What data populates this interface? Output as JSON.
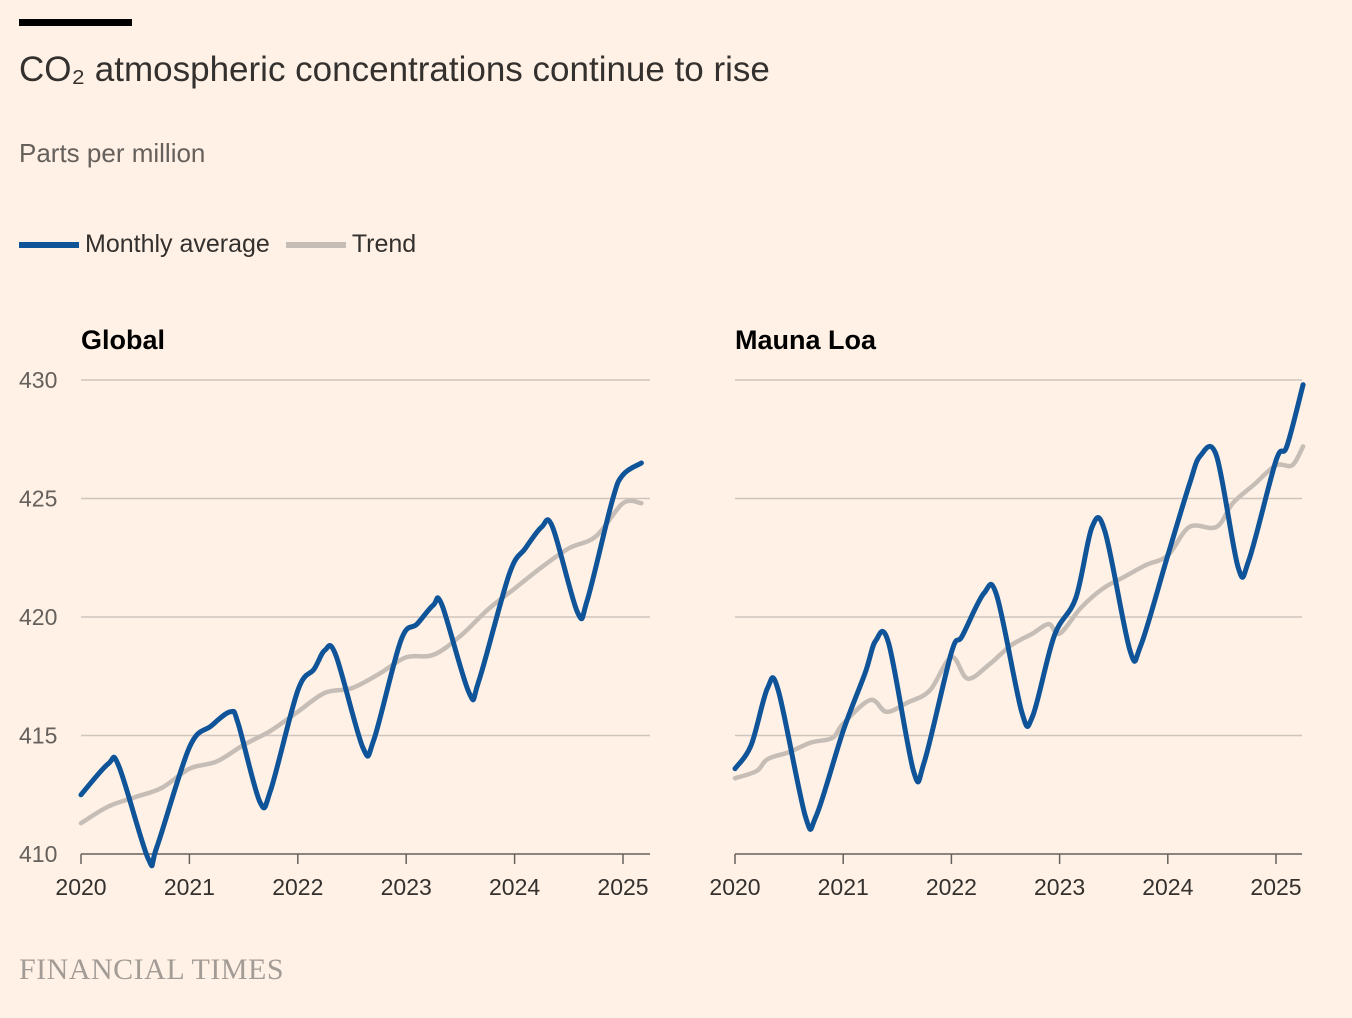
{
  "header": {
    "title": "CO₂ atmospheric concentrations continue to rise",
    "subtitle": "Parts per million"
  },
  "legend": [
    {
      "label": "Monthly average",
      "color": "#0F5499"
    },
    {
      "label": "Trend",
      "color": "#C6BEB6"
    }
  ],
  "footer": {
    "source": "FINANCIAL TIMES"
  },
  "chart_data": [
    {
      "type": "line",
      "title": "Global",
      "ylabel": "Parts per million",
      "ylim": [
        410,
        430
      ],
      "xlim": [
        2020,
        2025.2
      ],
      "yticks": [
        410,
        415,
        420,
        425,
        430
      ],
      "xticks": [
        2020,
        2021,
        2022,
        2023,
        2024,
        2025
      ],
      "grid": true,
      "series": [
        {
          "name": "Monthly average",
          "points": [
            [
              2020.0,
              412.5
            ],
            [
              2020.25,
              413.8
            ],
            [
              2020.35,
              413.7
            ],
            [
              2020.62,
              409.8
            ],
            [
              2020.7,
              410.3
            ],
            [
              2021.0,
              414.5
            ],
            [
              2021.2,
              415.4
            ],
            [
              2021.38,
              416.0
            ],
            [
              2021.45,
              415.5
            ],
            [
              2021.65,
              412.2
            ],
            [
              2021.75,
              412.7
            ],
            [
              2022.0,
              416.9
            ],
            [
              2022.15,
              417.8
            ],
            [
              2022.25,
              418.6
            ],
            [
              2022.35,
              418.4
            ],
            [
              2022.6,
              414.5
            ],
            [
              2022.7,
              414.8
            ],
            [
              2022.95,
              419.0
            ],
            [
              2023.1,
              419.7
            ],
            [
              2023.25,
              420.5
            ],
            [
              2023.33,
              420.5
            ],
            [
              2023.58,
              416.8
            ],
            [
              2023.67,
              417.3
            ],
            [
              2023.95,
              421.8
            ],
            [
              2024.1,
              422.9
            ],
            [
              2024.25,
              423.8
            ],
            [
              2024.35,
              423.8
            ],
            [
              2024.58,
              420.2
            ],
            [
              2024.67,
              420.7
            ],
            [
              2024.9,
              424.9
            ],
            [
              2025.0,
              426.0
            ],
            [
              2025.17,
              426.5
            ]
          ]
        },
        {
          "name": "Trend",
          "points": [
            [
              2020.0,
              411.3
            ],
            [
              2020.25,
              412.0
            ],
            [
              2020.5,
              412.4
            ],
            [
              2020.75,
              412.8
            ],
            [
              2021.0,
              413.6
            ],
            [
              2021.25,
              413.9
            ],
            [
              2021.5,
              414.6
            ],
            [
              2021.75,
              415.2
            ],
            [
              2022.0,
              416.0
            ],
            [
              2022.25,
              416.8
            ],
            [
              2022.5,
              417.0
            ],
            [
              2022.75,
              417.6
            ],
            [
              2023.0,
              418.3
            ],
            [
              2023.25,
              418.4
            ],
            [
              2023.5,
              419.2
            ],
            [
              2023.75,
              420.3
            ],
            [
              2024.0,
              421.2
            ],
            [
              2024.25,
              422.1
            ],
            [
              2024.5,
              422.9
            ],
            [
              2024.75,
              423.4
            ],
            [
              2025.0,
              424.8
            ],
            [
              2025.17,
              424.8
            ]
          ]
        }
      ]
    },
    {
      "type": "line",
      "title": "Mauna Loa",
      "ylabel": "Parts per million",
      "ylim": [
        410,
        430
      ],
      "xlim": [
        2020,
        2025.25
      ],
      "yticks": [
        410,
        415,
        420,
        425,
        430
      ],
      "xticks": [
        2020,
        2021,
        2022,
        2023,
        2024,
        2025
      ],
      "grid": true,
      "series": [
        {
          "name": "Monthly average",
          "points": [
            [
              2020.0,
              413.6
            ],
            [
              2020.15,
              414.6
            ],
            [
              2020.3,
              417.0
            ],
            [
              2020.4,
              416.9
            ],
            [
              2020.65,
              411.6
            ],
            [
              2020.75,
              411.6
            ],
            [
              2021.0,
              415.2
            ],
            [
              2021.2,
              417.6
            ],
            [
              2021.3,
              419.0
            ],
            [
              2021.42,
              418.9
            ],
            [
              2021.65,
              413.5
            ],
            [
              2021.75,
              413.9
            ],
            [
              2022.0,
              418.5
            ],
            [
              2022.1,
              419.2
            ],
            [
              2022.3,
              421.0
            ],
            [
              2022.42,
              420.9
            ],
            [
              2022.65,
              416.0
            ],
            [
              2022.75,
              415.8
            ],
            [
              2022.95,
              419.2
            ],
            [
              2023.15,
              420.8
            ],
            [
              2023.3,
              423.8
            ],
            [
              2023.42,
              423.6
            ],
            [
              2023.65,
              418.6
            ],
            [
              2023.75,
              418.8
            ],
            [
              2024.0,
              422.6
            ],
            [
              2024.2,
              425.6
            ],
            [
              2024.3,
              426.8
            ],
            [
              2024.45,
              426.8
            ],
            [
              2024.65,
              422.1
            ],
            [
              2024.75,
              422.4
            ],
            [
              2025.0,
              426.6
            ],
            [
              2025.1,
              427.2
            ],
            [
              2025.25,
              429.8
            ]
          ]
        },
        {
          "name": "Trend",
          "points": [
            [
              2020.0,
              413.2
            ],
            [
              2020.2,
              413.5
            ],
            [
              2020.3,
              414.0
            ],
            [
              2020.5,
              414.3
            ],
            [
              2020.7,
              414.7
            ],
            [
              2020.9,
              414.9
            ],
            [
              2021.0,
              415.5
            ],
            [
              2021.25,
              416.5
            ],
            [
              2021.4,
              416.0
            ],
            [
              2021.6,
              416.4
            ],
            [
              2021.8,
              416.9
            ],
            [
              2022.0,
              418.3
            ],
            [
              2022.15,
              417.4
            ],
            [
              2022.35,
              418.0
            ],
            [
              2022.55,
              418.8
            ],
            [
              2022.75,
              419.3
            ],
            [
              2022.9,
              419.7
            ],
            [
              2023.0,
              419.3
            ],
            [
              2023.2,
              420.4
            ],
            [
              2023.4,
              421.2
            ],
            [
              2023.6,
              421.7
            ],
            [
              2023.8,
              422.2
            ],
            [
              2024.0,
              422.6
            ],
            [
              2024.2,
              423.8
            ],
            [
              2024.45,
              423.8
            ],
            [
              2024.6,
              424.8
            ],
            [
              2024.8,
              425.6
            ],
            [
              2025.0,
              426.4
            ],
            [
              2025.15,
              426.4
            ],
            [
              2025.25,
              427.2
            ]
          ]
        }
      ]
    }
  ]
}
